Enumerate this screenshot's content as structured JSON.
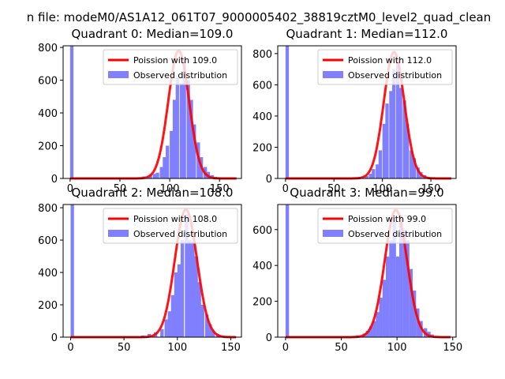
{
  "figure": {
    "suptitle": "n file: modeM0/AS1A12_061T07_9000005402_38819cztM0_level2_quad_clean"
  },
  "colors": {
    "poisson_line": "#ff0000",
    "observed_bars": "#8080ff",
    "axes": "#000000",
    "background": "#ffffff"
  },
  "chart_data": [
    {
      "type": "bar",
      "title": "Quadrant 0: Median=109.0",
      "xlim": [
        -7,
        172
      ],
      "ylim": [
        0,
        810
      ],
      "xticks": [
        0,
        50,
        100,
        150
      ],
      "xtick_labels": [
        "0",
        "50",
        "100",
        "150"
      ],
      "yticks": [
        0,
        200,
        400,
        600,
        800
      ],
      "ytick_labels": [
        "0",
        "200",
        "400",
        "600",
        "800"
      ],
      "legend_position": "upper right",
      "bin_width": 3.4,
      "series": [
        {
          "name": "Poission with 109.0",
          "kind": "line",
          "lambda": 109.0,
          "peak": 780
        },
        {
          "name": "Observed distribution",
          "kind": "histogram",
          "bins": [
            [
              0,
              820
            ],
            [
              72,
              12
            ],
            [
              79,
              18
            ],
            [
              83,
              28
            ],
            [
              86,
              35
            ],
            [
              90,
              70
            ],
            [
              93,
              130
            ],
            [
              96,
              200
            ],
            [
              100,
              290
            ],
            [
              103,
              480
            ],
            [
              106,
              620
            ],
            [
              110,
              580
            ],
            [
              113,
              720
            ],
            [
              117,
              600
            ],
            [
              120,
              480
            ],
            [
              123,
              330
            ],
            [
              127,
              220
            ],
            [
              130,
              130
            ],
            [
              134,
              70
            ],
            [
              137,
              40
            ],
            [
              141,
              20
            ],
            [
              144,
              10
            ]
          ]
        }
      ]
    },
    {
      "type": "bar",
      "title": "Quadrant 1: Median=112.0",
      "xlim": [
        -8,
        176
      ],
      "ylim": [
        0,
        850
      ],
      "xticks": [
        0,
        50,
        100,
        150
      ],
      "xtick_labels": [
        "0",
        "50",
        "100",
        "150"
      ],
      "yticks": [
        0,
        200,
        400,
        600,
        800
      ],
      "ytick_labels": [
        "0",
        "200",
        "400",
        "600",
        "800"
      ],
      "legend_position": "upper right",
      "bin_width": 3.5,
      "series": [
        {
          "name": "Poission with 112.0",
          "kind": "line",
          "lambda": 112.0,
          "peak": 810
        },
        {
          "name": "Observed distribution",
          "kind": "histogram",
          "bins": [
            [
              0,
              850
            ],
            [
              75,
              10
            ],
            [
              82,
              15
            ],
            [
              86,
              30
            ],
            [
              89,
              60
            ],
            [
              93,
              90
            ],
            [
              96,
              180
            ],
            [
              100,
              350
            ],
            [
              103,
              480
            ],
            [
              107,
              560
            ],
            [
              110,
              700
            ],
            [
              114,
              740
            ],
            [
              117,
              580
            ],
            [
              121,
              500
            ],
            [
              124,
              350
            ],
            [
              128,
              180
            ],
            [
              131,
              130
            ],
            [
              135,
              70
            ],
            [
              138,
              40
            ],
            [
              142,
              20
            ],
            [
              145,
              10
            ]
          ]
        }
      ]
    },
    {
      "type": "bar",
      "title": "Quadrant 2: Median=108.0",
      "xlim": [
        -7,
        160
      ],
      "ylim": [
        0,
        820
      ],
      "xticks": [
        0,
        50,
        100,
        150
      ],
      "xtick_labels": [
        "0",
        "50",
        "100",
        "150"
      ],
      "yticks": [
        0,
        200,
        400,
        600,
        800
      ],
      "ytick_labels": [
        "0",
        "200",
        "400",
        "600",
        "800"
      ],
      "legend_position": "upper right",
      "bin_width": 3.2,
      "series": [
        {
          "name": "Poission with 108.0",
          "kind": "line",
          "lambda": 108.0,
          "peak": 790
        },
        {
          "name": "Observed distribution",
          "kind": "histogram",
          "bins": [
            [
              0,
              830
            ],
            [
              66,
              10
            ],
            [
              72,
              20
            ],
            [
              78,
              30
            ],
            [
              84,
              50
            ],
            [
              88,
              110
            ],
            [
              91,
              160
            ],
            [
              94,
              260
            ],
            [
              97,
              400
            ],
            [
              100,
              450
            ],
            [
              103,
              600
            ],
            [
              107,
              760
            ],
            [
              110,
              600
            ],
            [
              113,
              590
            ],
            [
              116,
              500
            ],
            [
              119,
              340
            ],
            [
              122,
              200
            ],
            [
              126,
              140
            ],
            [
              129,
              80
            ],
            [
              132,
              40
            ],
            [
              136,
              20
            ],
            [
              139,
              10
            ]
          ]
        }
      ]
    },
    {
      "type": "bar",
      "title": "Quadrant 3: Median=99.0",
      "xlim": [
        -7,
        153
      ],
      "ylim": [
        0,
        740
      ],
      "xticks": [
        0,
        50,
        100,
        150
      ],
      "xtick_labels": [
        "0",
        "50",
        "100",
        "150"
      ],
      "yticks": [
        0,
        200,
        400,
        600
      ],
      "ytick_labels": [
        "0",
        "200",
        "400",
        "600"
      ],
      "legend_position": "upper right",
      "bin_width": 3.1,
      "series": [
        {
          "name": "Poission with 99.0",
          "kind": "line",
          "lambda": 99.0,
          "peak": 710
        },
        {
          "name": "Observed distribution",
          "kind": "histogram",
          "bins": [
            [
              0,
              740
            ],
            [
              63,
              10
            ],
            [
              69,
              20
            ],
            [
              72,
              35
            ],
            [
              75,
              60
            ],
            [
              78,
              90
            ],
            [
              81,
              140
            ],
            [
              84,
              220
            ],
            [
              87,
              320
            ],
            [
              90,
              450
            ],
            [
              93,
              540
            ],
            [
              96,
              650
            ],
            [
              99,
              450
            ],
            [
              102,
              680
            ],
            [
              105,
              600
            ],
            [
              108,
              540
            ],
            [
              111,
              380
            ],
            [
              114,
              260
            ],
            [
              117,
              160
            ],
            [
              120,
              90
            ],
            [
              124,
              50
            ],
            [
              127,
              30
            ],
            [
              130,
              15
            ]
          ]
        }
      ]
    }
  ]
}
